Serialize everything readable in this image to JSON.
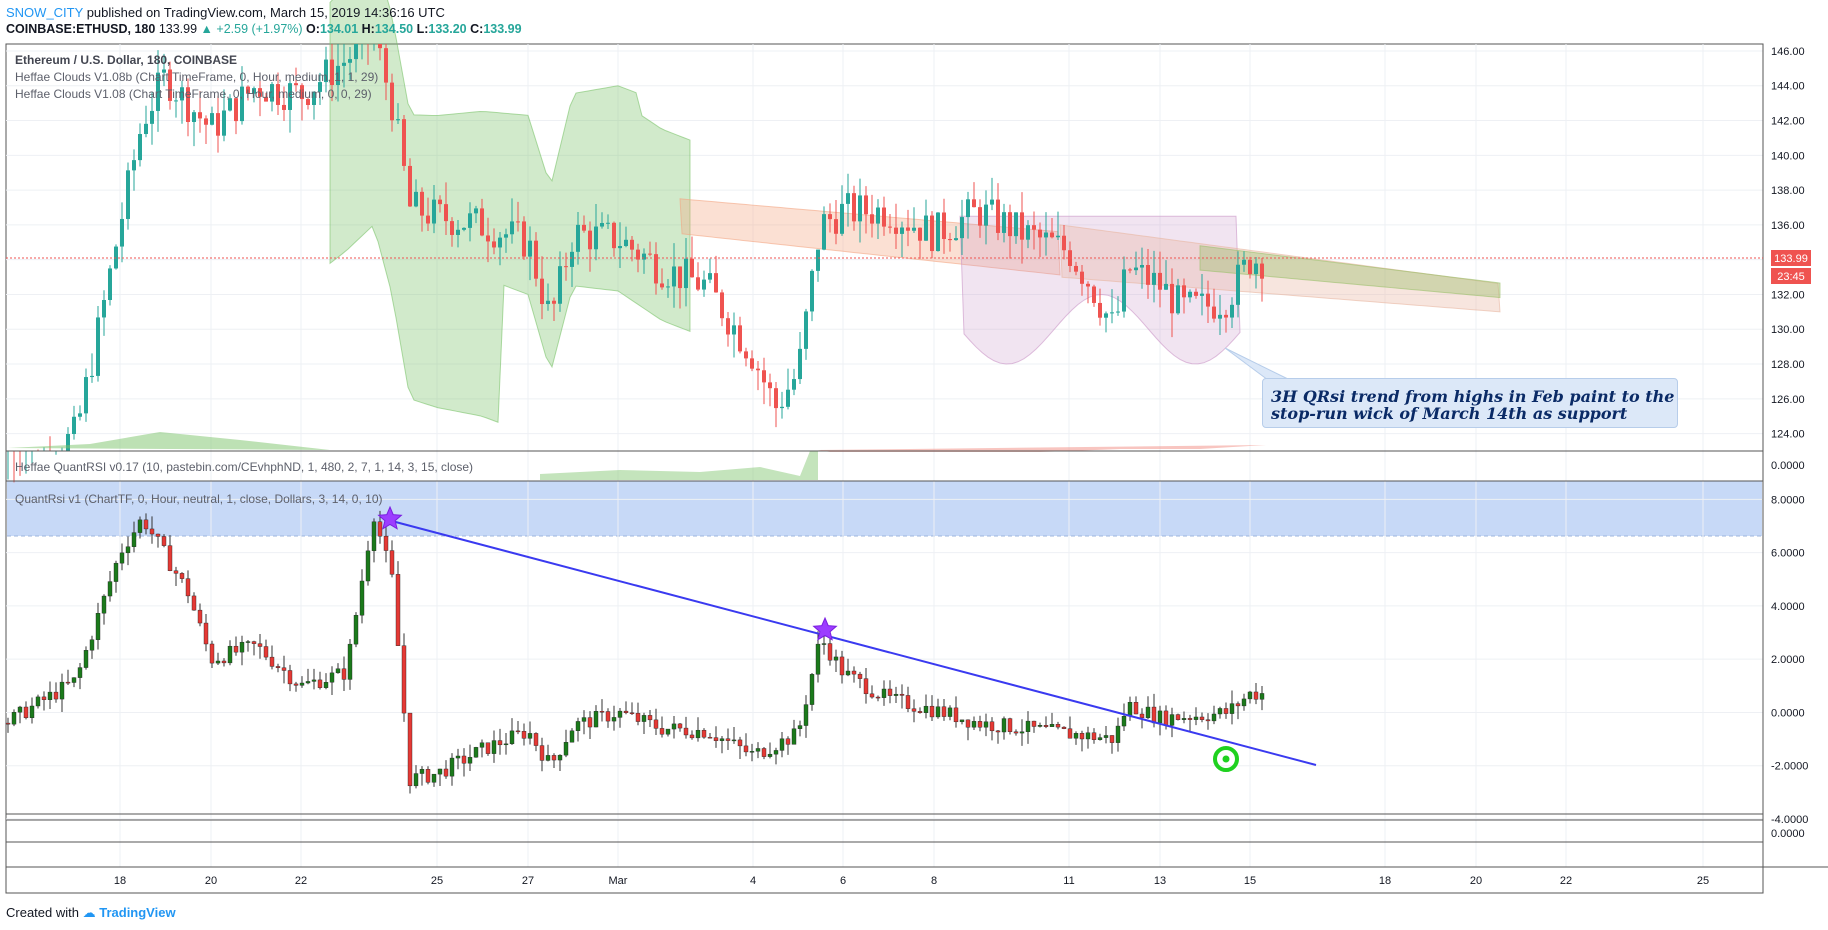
{
  "header": {
    "author": "SNOW_CITY",
    "published_text": "published on TradingView.com, March 15, 2019 14:36:16 UTC",
    "symbol": "COINBASE:ETHUSD, 180",
    "last": "133.99",
    "change": "▲ +2.59 (+1.97%)",
    "o_label": "O:",
    "o_value": "134.01",
    "h_label": "H:",
    "h_value": "134.50",
    "l_label": "L:",
    "l_value": "133.20",
    "c_label": "C:",
    "c_value": "133.99"
  },
  "legends": {
    "main_title": "Ethereum / U.S. Dollar, 180, COINBASE",
    "study1": "Heffae Clouds V1.08b (Chart TimeFrame, 0, Hour, medium, 1, 1, 29)",
    "study2": "Heffae Clouds V1.08 (Chart TimeFrame, 0, Hour, medium, 0, 0, 29)",
    "quantrsi1": "Heffae QuantRSI v0.17 (10, pastebin.com/CEvhphND, 1, 480, 2, 7, 1, 14, 3, 15, close)",
    "quantrsi2": "QuantRsi v1 (ChartTF, 0, Hour, neutral, 1, close, Dollars, 3, 14, 0, 10)"
  },
  "price_tags": {
    "last_price": "133.99",
    "countdown": "23:45"
  },
  "annotation": {
    "line1": "3H QRsi trend from highs in Feb paint to the",
    "line2": "stop-run wick of March 14th as support"
  },
  "footer": {
    "created_with": "Created with",
    "brand": "TradingView"
  },
  "colors": {
    "up": "#26a69a",
    "down": "#ef5350",
    "rsi_up": "#1b7a1b",
    "rsi_down": "#e53935",
    "trendline": "#3a3af0",
    "star": "#9c3dff",
    "target": "#1fd11f"
  },
  "chart_data": [
    {
      "type": "candlestick",
      "title": "Ethereum / U.S. Dollar, 180, COINBASE",
      "x_ticks": [
        "18",
        "20",
        "22",
        "25",
        "27",
        "Mar",
        "4",
        "6",
        "8",
        "11",
        "13",
        "15",
        "18",
        "20",
        "22",
        "25"
      ],
      "y_ticks": [
        "124.00",
        "126.00",
        "128.00",
        "130.00",
        "132.00",
        "134.00",
        "136.00",
        "138.00",
        "140.00",
        "142.00",
        "144.00",
        "146.00"
      ],
      "ylim": [
        123,
        146.4
      ],
      "last_price": 133.99,
      "approx_closes": [
        {
          "x": "16",
          "y": 120.5
        },
        {
          "x": "17",
          "y": 124.0
        },
        {
          "x": "17.6",
          "y": 131.0
        },
        {
          "x": "18",
          "y": 136.0
        },
        {
          "x": "18.5",
          "y": 142.0
        },
        {
          "x": "19",
          "y": 144.5
        },
        {
          "x": "20",
          "y": 141.5
        },
        {
          "x": "21",
          "y": 144.0
        },
        {
          "x": "22",
          "y": 143.5
        },
        {
          "x": "23",
          "y": 145.5
        },
        {
          "x": "23.6",
          "y": 147.0
        },
        {
          "x": "24",
          "y": 143.0
        },
        {
          "x": "24.4",
          "y": 137.0
        },
        {
          "x": "25",
          "y": 136.5
        },
        {
          "x": "26",
          "y": 136.0
        },
        {
          "x": "27",
          "y": 135.0
        },
        {
          "x": "27.5",
          "y": 130.5
        },
        {
          "x": "28",
          "y": 135.5
        },
        {
          "x": "Mar",
          "y": 135.2
        },
        {
          "x": "2",
          "y": 133.5
        },
        {
          "x": "3",
          "y": 132.5
        },
        {
          "x": "4",
          "y": 128.5
        },
        {
          "x": "4.5",
          "y": 125.5
        },
        {
          "x": "5",
          "y": 127.5
        },
        {
          "x": "5.5",
          "y": 136.0
        },
        {
          "x": "6",
          "y": 136.8
        },
        {
          "x": "7",
          "y": 136.8
        },
        {
          "x": "8",
          "y": 135.5
        },
        {
          "x": "9",
          "y": 136.8
        },
        {
          "x": "10",
          "y": 135.5
        },
        {
          "x": "11",
          "y": 134.5
        },
        {
          "x": "11.5",
          "y": 132.5
        },
        {
          "x": "12",
          "y": 130.0
        },
        {
          "x": "12.3",
          "y": 133.5
        },
        {
          "x": "13",
          "y": 132.5
        },
        {
          "x": "13.5",
          "y": 131.2
        },
        {
          "x": "14",
          "y": 131.3
        },
        {
          "x": "14.5",
          "y": 131.8
        },
        {
          "x": "15",
          "y": 134.0
        }
      ]
    },
    {
      "type": "line",
      "title": "QuantRsi v1",
      "y_ticks": [
        "8.0000",
        "6.0000",
        "4.0000",
        "2.0000",
        "0.0000",
        "-2.0000",
        "-4.0000"
      ],
      "ylim": [
        -4,
        8.5
      ],
      "approx_values": [
        {
          "x": "16",
          "y": -0.4
        },
        {
          "x": "17",
          "y": 1.2
        },
        {
          "x": "18",
          "y": 6.0
        },
        {
          "x": "18.5",
          "y": 7.3
        },
        {
          "x": "19.5",
          "y": 4.5
        },
        {
          "x": "20",
          "y": 2.0
        },
        {
          "x": "21",
          "y": 2.5
        },
        {
          "x": "22",
          "y": 1.0
        },
        {
          "x": "23",
          "y": 1.5
        },
        {
          "x": "23.6",
          "y": 7.5
        },
        {
          "x": "24",
          "y": 5.0
        },
        {
          "x": "24.4",
          "y": -2.5
        },
        {
          "x": "25",
          "y": -2.3
        },
        {
          "x": "26",
          "y": -1.4
        },
        {
          "x": "27",
          "y": -0.7
        },
        {
          "x": "27.5",
          "y": -2.0
        },
        {
          "x": "28",
          "y": -0.5
        },
        {
          "x": "Mar",
          "y": 0.0
        },
        {
          "x": "2",
          "y": -0.6
        },
        {
          "x": "3",
          "y": -0.7
        },
        {
          "x": "4",
          "y": -1.6
        },
        {
          "x": "5",
          "y": -0.8
        },
        {
          "x": "5.5",
          "y": 2.8
        },
        {
          "x": "6",
          "y": 1.5
        },
        {
          "x": "7",
          "y": 0.5
        },
        {
          "x": "8",
          "y": 0.1
        },
        {
          "x": "9",
          "y": -0.4
        },
        {
          "x": "10",
          "y": -0.6
        },
        {
          "x": "11",
          "y": -0.8
        },
        {
          "x": "12",
          "y": -1.0
        },
        {
          "x": "12.3",
          "y": 0.3
        },
        {
          "x": "13",
          "y": -0.2
        },
        {
          "x": "14",
          "y": -0.1
        },
        {
          "x": "14.5",
          "y": 0.0
        },
        {
          "x": "15",
          "y": 0.7
        }
      ],
      "trendline": [
        {
          "x": "23.6",
          "y": 7.4
        },
        {
          "x": "16.3",
          "y": -2.1
        }
      ],
      "markers": [
        {
          "x": "23.6",
          "y": 7.6,
          "shape": "star"
        },
        {
          "x": "5.5",
          "y": 3.2,
          "shape": "star"
        },
        {
          "x": "14.3",
          "y": -1.8,
          "shape": "target"
        }
      ]
    }
  ]
}
